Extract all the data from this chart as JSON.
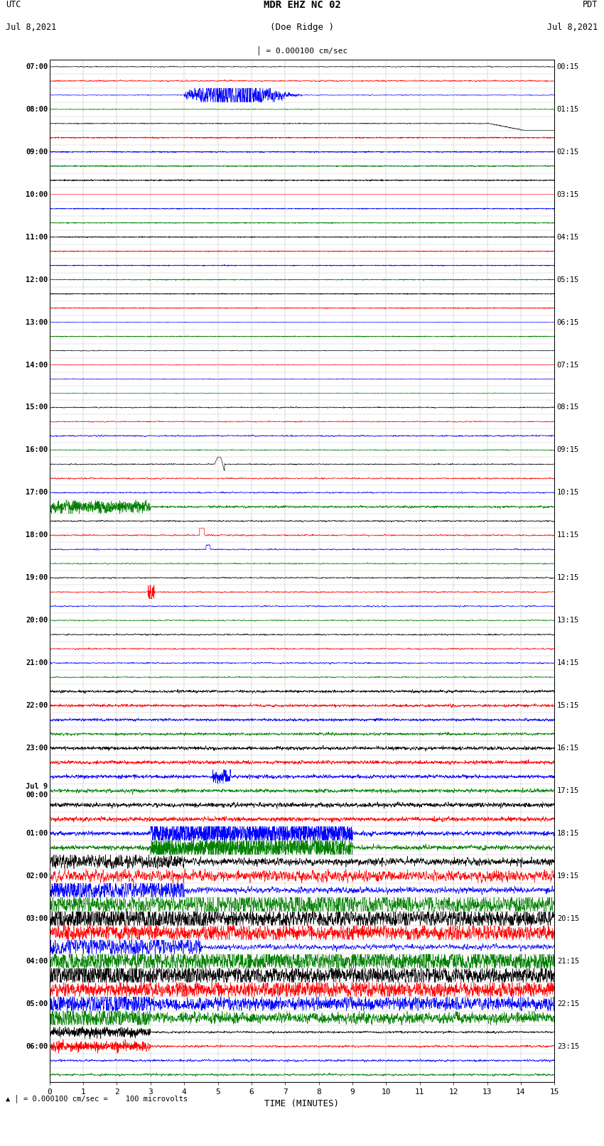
{
  "title_line1": "MDR EHZ NC 02",
  "title_line2": "(Doe Ridge )",
  "scale_text": "= 0.000100 cm/sec",
  "bottom_text": "= 0.000100 cm/sec =    100 microvolts",
  "utc_label": "UTC\nJul 8,2021",
  "pdt_label": "PDT\nJul 8,2021",
  "xlabel": "TIME (MINUTES)",
  "left_times": [
    "07:00",
    "",
    "",
    "08:00",
    "",
    "",
    "09:00",
    "",
    "",
    "10:00",
    "",
    "",
    "11:00",
    "",
    "",
    "12:00",
    "",
    "",
    "13:00",
    "",
    "",
    "14:00",
    "",
    "",
    "15:00",
    "",
    "",
    "16:00",
    "",
    "",
    "17:00",
    "",
    "",
    "18:00",
    "",
    "",
    "19:00",
    "",
    "",
    "20:00",
    "",
    "",
    "21:00",
    "",
    "",
    "22:00",
    "",
    "",
    "23:00",
    "",
    "",
    "Jul 9\n00:00",
    "",
    "",
    "01:00",
    "",
    "",
    "02:00",
    "",
    "",
    "03:00",
    "",
    "",
    "04:00",
    "",
    "",
    "05:00",
    "",
    "",
    "06:00",
    "",
    ""
  ],
  "right_times": [
    "00:15",
    "",
    "",
    "01:15",
    "",
    "",
    "02:15",
    "",
    "",
    "03:15",
    "",
    "",
    "04:15",
    "",
    "",
    "05:15",
    "",
    "",
    "06:15",
    "",
    "",
    "07:15",
    "",
    "",
    "08:15",
    "",
    "",
    "09:15",
    "",
    "",
    "10:15",
    "",
    "",
    "11:15",
    "",
    "",
    "12:15",
    "",
    "",
    "13:15",
    "",
    "",
    "14:15",
    "",
    "",
    "15:15",
    "",
    "",
    "16:15",
    "",
    "",
    "17:15",
    "",
    "",
    "18:15",
    "",
    "",
    "19:15",
    "",
    "",
    "20:15",
    "",
    "",
    "21:15",
    "",
    "",
    "22:15",
    "",
    "",
    "23:15",
    "",
    ""
  ],
  "n_rows": 72,
  "colors_cycle": [
    "black",
    "red",
    "blue",
    "green"
  ],
  "bg_color": "white",
  "fig_width": 8.5,
  "fig_height": 16.13,
  "xlim": [
    0,
    15
  ],
  "xticks": [
    0,
    1,
    2,
    3,
    4,
    5,
    6,
    7,
    8,
    9,
    10,
    11,
    12,
    13,
    14,
    15
  ],
  "noise_seed": 42
}
